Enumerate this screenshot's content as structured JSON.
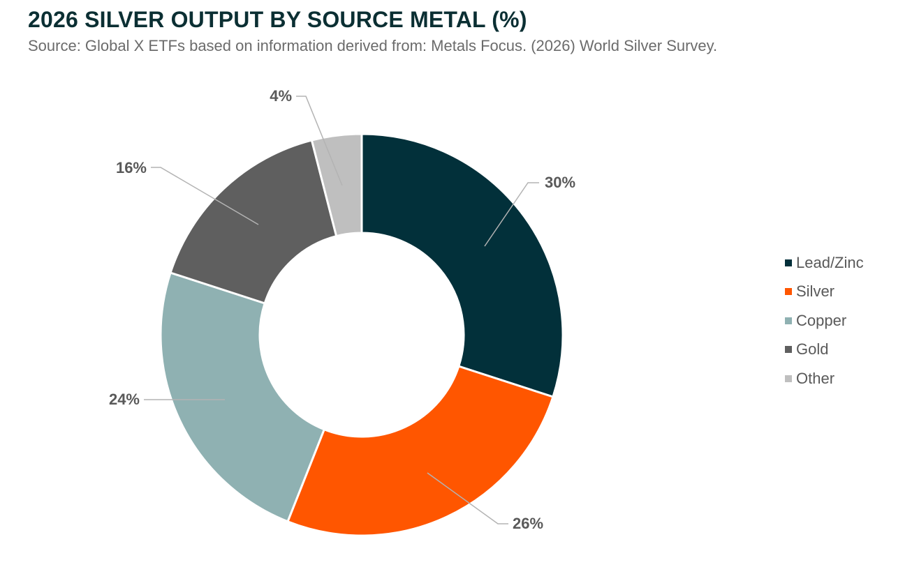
{
  "title": "2026 SILVER OUTPUT BY SOURCE METAL (%)",
  "subtitle": "Source: Global X ETFs based on information derived from: Metals Focus. (2026) World Silver Survey.",
  "chart_data": {
    "type": "pie",
    "donut": true,
    "title": "2026 SILVER OUTPUT BY SOURCE METAL (%)",
    "unit": "%",
    "legend_position": "right",
    "slices": [
      {
        "name": "Lead/Zinc",
        "value": 30,
        "label": "30%",
        "color": "#02303a"
      },
      {
        "name": "Silver",
        "value": 26,
        "label": "26%",
        "color": "#ff5600"
      },
      {
        "name": "Copper",
        "value": 24,
        "label": "24%",
        "color": "#8fb1b2"
      },
      {
        "name": "Gold",
        "value": 16,
        "label": "16%",
        "color": "#5f5f5f"
      },
      {
        "name": "Other",
        "value": 4,
        "label": "4%",
        "color": "#bfbfbf"
      }
    ]
  }
}
